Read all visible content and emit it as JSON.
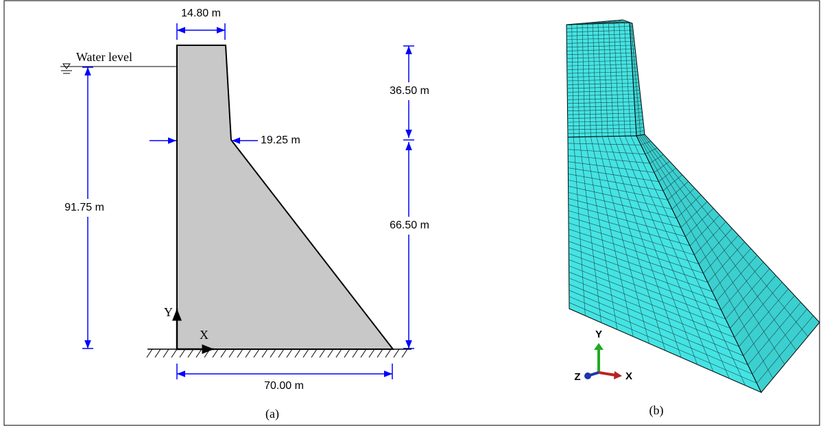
{
  "panel_a": {
    "top_width": "14.80 m",
    "water_level": "Water level",
    "upper_height": "36.50 m",
    "knee_width": "19.25 m",
    "water_depth": "91.75 m",
    "lower_height": "66.50 m",
    "axis_y": "Y",
    "axis_x": "X",
    "base_width": "70.00 m",
    "caption": "(a)"
  },
  "panel_b": {
    "axis_y": "Y",
    "axis_z": "Z",
    "axis_x": "X",
    "caption": "(b)"
  }
}
